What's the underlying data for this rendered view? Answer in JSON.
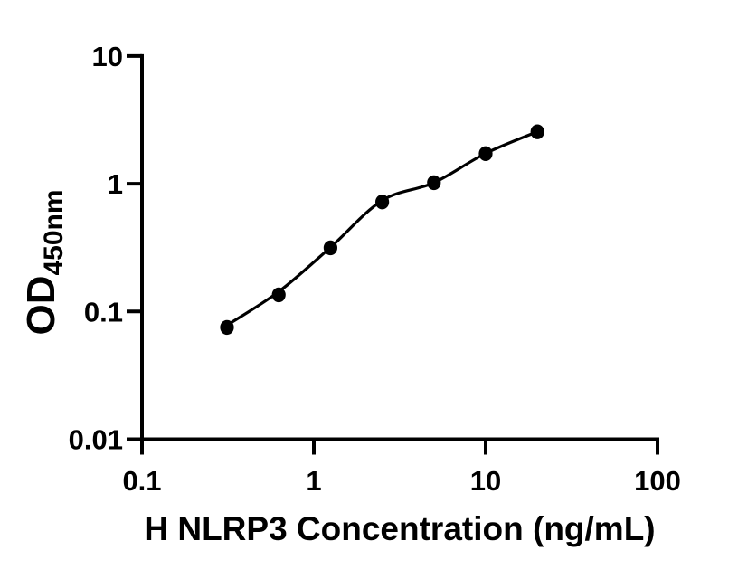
{
  "figure": {
    "background_color": "#ffffff",
    "description": "ELISA standard curve scatter plot with fitted line"
  },
  "chart_data": {
    "type": "scatter",
    "title": "",
    "xlabel": "H NLRP3 Concentration (ng/mL)",
    "ylabel": {
      "main": "OD",
      "sub": "450nm"
    },
    "xscale": "log",
    "yscale": "log",
    "xlim": [
      0.1,
      100
    ],
    "ylim": [
      0.01,
      10
    ],
    "grid": false,
    "legend": "none",
    "x_ticks": [
      {
        "value": 0.1,
        "label": "0.1"
      },
      {
        "value": 1,
        "label": "1"
      },
      {
        "value": 10,
        "label": "10"
      },
      {
        "value": 100,
        "label": "100"
      }
    ],
    "y_ticks": [
      {
        "value": 0.01,
        "label": "0.01"
      },
      {
        "value": 0.1,
        "label": "0.1"
      },
      {
        "value": 1,
        "label": "1"
      },
      {
        "value": 10,
        "label": "10"
      }
    ],
    "series": [
      {
        "name": "standard-points",
        "marker": "filled-circle",
        "color": "#000000",
        "points": [
          {
            "x": 0.3125,
            "y": 0.075
          },
          {
            "x": 0.625,
            "y": 0.135
          },
          {
            "x": 1.25,
            "y": 0.315
          },
          {
            "x": 2.5,
            "y": 0.72
          },
          {
            "x": 5,
            "y": 1.02
          },
          {
            "x": 10,
            "y": 1.72
          },
          {
            "x": 20,
            "y": 2.55
          }
        ]
      }
    ],
    "fit_curve": {
      "name": "fitted-standard-curve",
      "color": "#000000",
      "points": [
        [
          0.3125,
          0.078
        ],
        [
          0.625,
          0.143
        ],
        [
          1.25,
          0.318
        ],
        [
          2.5,
          0.74
        ],
        [
          5,
          1.02
        ],
        [
          10,
          1.73
        ],
        [
          20,
          2.56
        ]
      ]
    },
    "axis_color": "#000000",
    "point_color": "#000000"
  }
}
